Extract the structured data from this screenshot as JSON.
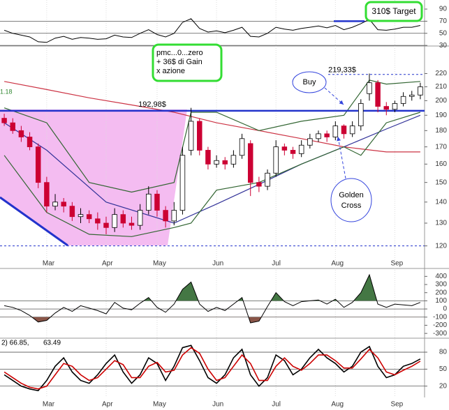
{
  "chart_data": {
    "type": "candlestick",
    "categories": [
      null,
      null,
      null,
      null,
      null,
      "Mar",
      null,
      null,
      null,
      null,
      null,
      null,
      "Apr",
      null,
      null,
      null,
      null,
      null,
      "May",
      null,
      null,
      null,
      null,
      null,
      null,
      "Jun",
      null,
      null,
      null,
      null,
      null,
      null,
      "Jul",
      null,
      null,
      null,
      null,
      null,
      null,
      "Aug",
      null,
      null,
      null,
      null,
      null,
      null,
      "Sep",
      null,
      null,
      null
    ],
    "open": [
      188,
      185,
      180,
      176,
      170,
      150,
      138,
      140,
      138,
      133,
      134,
      132,
      130,
      128,
      134,
      130,
      129,
      136,
      144,
      136,
      131,
      136,
      168,
      186,
      168,
      160,
      162,
      160,
      165,
      172,
      150,
      148,
      155,
      170,
      168,
      166,
      171,
      175,
      178,
      176,
      183,
      178,
      183,
      205,
      213,
      196,
      194,
      198,
      203,
      204
    ],
    "high": [
      191,
      188,
      183,
      179,
      172,
      153,
      144,
      142,
      140,
      137,
      136,
      135,
      133,
      137,
      136,
      133,
      139,
      148,
      146,
      138,
      140,
      170,
      195,
      188,
      170,
      165,
      164,
      168,
      178,
      174,
      153,
      157,
      174,
      172,
      170,
      174,
      178,
      180,
      180,
      186,
      184,
      186,
      201,
      220,
      215,
      199,
      200,
      206,
      207,
      213
    ],
    "low": [
      183,
      178,
      173,
      168,
      147,
      135,
      136,
      135,
      131,
      130,
      130,
      127,
      125,
      126,
      128,
      127,
      127,
      134,
      133,
      128,
      129,
      134,
      165,
      165,
      157,
      158,
      157,
      158,
      163,
      143,
      145,
      146,
      153,
      165,
      163,
      164,
      169,
      173,
      173,
      174,
      175,
      176,
      180,
      200,
      192,
      190,
      192,
      196,
      200,
      201
    ],
    "close": [
      185,
      180,
      176,
      170,
      150,
      138,
      140,
      138,
      133,
      134,
      132,
      130,
      128,
      134,
      130,
      129,
      136,
      144,
      136,
      131,
      136,
      165,
      186,
      168,
      160,
      162,
      160,
      165,
      175,
      150,
      148,
      155,
      170,
      168,
      166,
      171,
      175,
      178,
      176,
      183,
      178,
      183,
      198,
      213,
      196,
      194,
      198,
      203,
      204,
      210
    ],
    "up_color": "#ffffff",
    "down_color": "#cc0033",
    "ylim": [
      115,
      240
    ],
    "log_scale": true,
    "yticks": [
      220,
      210,
      200,
      190,
      180,
      170,
      160,
      150,
      140,
      130,
      120
    ],
    "overlays": [
      {
        "color": "#cc3344",
        "x": [
          0,
          5,
          10,
          15,
          20,
          25,
          30,
          35,
          40,
          45,
          49
        ],
        "values": [
          214,
          208,
          202,
          197,
          192,
          185,
          180,
          175,
          170,
          167,
          167
        ]
      },
      {
        "color": "#333399",
        "x": [
          0,
          5,
          12,
          20,
          25,
          30,
          35,
          40,
          45,
          49
        ],
        "values": [
          185,
          168,
          140,
          130,
          139,
          149,
          160,
          170,
          181,
          190
        ]
      },
      {
        "color": "#336633",
        "x": [
          0,
          5,
          10,
          15,
          20,
          22,
          25,
          30,
          35,
          40,
          43,
          45,
          49
        ],
        "values": [
          195,
          185,
          150,
          145,
          150,
          192,
          192,
          180,
          186,
          190,
          215,
          212,
          214
        ]
      },
      {
        "color": "#336633",
        "x": [
          0,
          5,
          10,
          15,
          20,
          22,
          25,
          30,
          35,
          40,
          42,
          45,
          49
        ],
        "values": [
          165,
          135,
          125,
          124,
          128,
          130,
          146,
          150,
          160,
          170,
          165,
          185,
          192
        ]
      }
    ],
    "support": {
      "value": 192.98,
      "label": "192,98$"
    },
    "resistance": {
      "value": 219.33,
      "label": "219,33$"
    },
    "floor_level": 120,
    "indicator_value": "1.18",
    "note_box": [
      "pmc...0...zero",
      "+ 36$ di Gain",
      "x azione"
    ],
    "target_box": "310$ Target",
    "buy_label": "Buy",
    "golden_cross": [
      "Golden",
      "Cross"
    ],
    "rsi": {
      "ylim": [
        29,
        105
      ],
      "yticks": [
        90,
        70,
        50,
        30
      ],
      "levels": [
        70,
        50,
        30
      ],
      "highlight_level": 70,
      "values": [
        55,
        50,
        47,
        44,
        36,
        35,
        42,
        45,
        40,
        43,
        42,
        40,
        41,
        47,
        44,
        43,
        50,
        56,
        48,
        44,
        50,
        68,
        74,
        58,
        52,
        54,
        51,
        55,
        60,
        45,
        44,
        50,
        60,
        57,
        55,
        58,
        60,
        62,
        59,
        63,
        56,
        60,
        66,
        73,
        56,
        55,
        57,
        60,
        60,
        63
      ]
    },
    "cci": {
      "ylim": [
        -350,
        480
      ],
      "yticks": [
        400,
        300,
        200,
        100,
        0,
        -100,
        -200,
        -300
      ],
      "levels": [
        100,
        0,
        -100
      ],
      "up_fill": "#447744",
      "down_fill": "#8a5548",
      "values": [
        40,
        20,
        -20,
        -80,
        -160,
        -140,
        -50,
        20,
        -30,
        40,
        10,
        -20,
        -60,
        80,
        10,
        -10,
        70,
        140,
        20,
        -40,
        60,
        240,
        330,
        60,
        -30,
        20,
        -20,
        60,
        140,
        -170,
        -150,
        30,
        200,
        90,
        40,
        90,
        100,
        110,
        60,
        120,
        20,
        80,
        200,
        420,
        60,
        20,
        60,
        50,
        40,
        80
      ]
    },
    "stoch": {
      "ylim": [
        0,
        101
      ],
      "yticks": [
        80,
        50,
        20
      ],
      "levels": [
        80,
        50,
        20
      ],
      "header": "2) 66.85,",
      "header2": "63.49",
      "series": [
        {
          "color": "#000000",
          "values": [
            40,
            30,
            20,
            15,
            12,
            30,
            55,
            70,
            45,
            30,
            25,
            40,
            60,
            75,
            45,
            25,
            40,
            70,
            60,
            30,
            55,
            88,
            92,
            65,
            35,
            25,
            40,
            70,
            85,
            40,
            20,
            35,
            75,
            65,
            40,
            50,
            70,
            85,
            70,
            60,
            45,
            55,
            80,
            90,
            55,
            35,
            40,
            55,
            60,
            68
          ]
        },
        {
          "color": "#cc0000",
          "values": [
            45,
            35,
            25,
            18,
            15,
            20,
            40,
            60,
            55,
            40,
            30,
            35,
            50,
            65,
            58,
            35,
            35,
            55,
            62,
            45,
            48,
            75,
            88,
            78,
            50,
            30,
            35,
            55,
            75,
            60,
            30,
            30,
            55,
            70,
            55,
            48,
            60,
            75,
            75,
            65,
            52,
            52,
            68,
            85,
            70,
            45,
            40,
            48,
            55,
            64
          ]
        }
      ]
    }
  }
}
